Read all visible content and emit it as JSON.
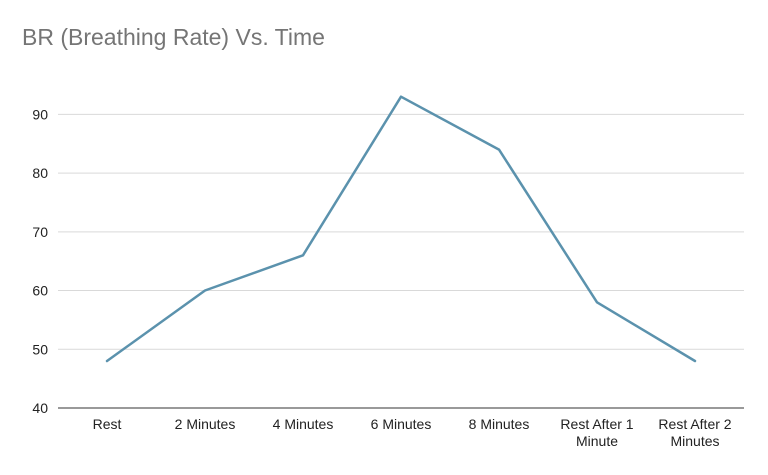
{
  "chart_data": {
    "type": "line",
    "title": "BR (Breathing Rate) Vs. Time",
    "xlabel": "",
    "ylabel": "",
    "categories": [
      "Rest",
      "2 Minutes",
      "4 Minutes",
      "6 Minutes",
      "8 Minutes",
      "Rest After 1 Minute",
      "Rest After 2 Minutes"
    ],
    "category_lines": [
      [
        "Rest"
      ],
      [
        "2 Minutes"
      ],
      [
        "4 Minutes"
      ],
      [
        "6 Minutes"
      ],
      [
        "8 Minutes"
      ],
      [
        "Rest After 1",
        "Minute"
      ],
      [
        "Rest After 2",
        "Minutes"
      ]
    ],
    "series": [
      {
        "values": [
          48,
          60,
          66,
          93,
          84,
          58,
          48
        ]
      }
    ],
    "ylim": [
      40,
      95
    ],
    "yticks": [
      40,
      50,
      60,
      70,
      80,
      90
    ],
    "grid": true,
    "legend": "none",
    "colors": {
      "line": "#5b92ad",
      "grid": "#d9d9d9",
      "axis": "#333333",
      "title": "#757575",
      "text": "#222222"
    }
  }
}
